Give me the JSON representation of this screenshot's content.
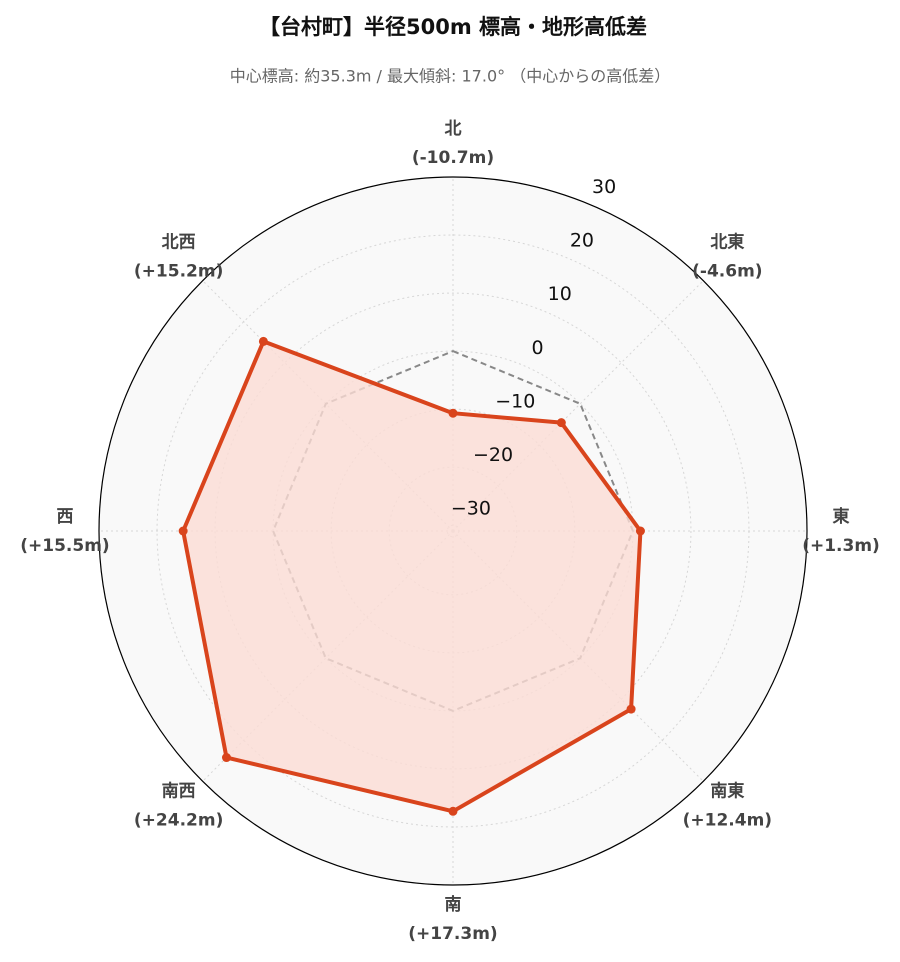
{
  "chart_data": {
    "type": "radar",
    "title": "【台村町】半径500m 標高・地形高低差",
    "subtitle": "中心標高: 約35.3m / 最大傾斜: 17.0° （中心からの高低差）",
    "categories": [
      "北",
      "北東",
      "東",
      "南東",
      "南",
      "南西",
      "西",
      "北西"
    ],
    "values": [
      -10.7,
      -4.6,
      1.3,
      12.4,
      17.3,
      24.2,
      15.5,
      15.2
    ],
    "value_labels": [
      "(-10.7m)",
      "(-4.6m)",
      "(+1.3m)",
      "(+12.4m)",
      "(+17.3m)",
      "(+24.2m)",
      "(+15.5m)",
      "(+15.2m)"
    ],
    "color": "#d9441c",
    "fill_color": "#fbdcd4",
    "reference_line": 0,
    "ylim": [
      -31,
      30
    ],
    "yticks": [
      {
        "value": -30,
        "label": "−30"
      },
      {
        "value": -20,
        "label": "−20"
      },
      {
        "value": -10,
        "label": "−10"
      },
      0,
      10,
      20,
      30
    ],
    "grid": true
  }
}
